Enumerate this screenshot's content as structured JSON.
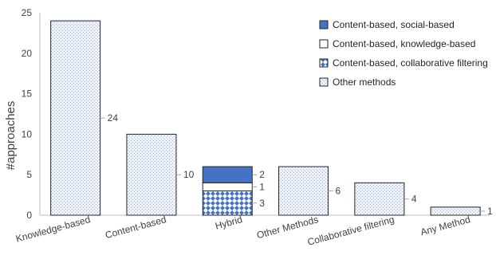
{
  "chart_data": {
    "type": "bar",
    "stacked": true,
    "xlabel": "",
    "ylabel": "#approaches",
    "ylim": [
      0,
      25
    ],
    "yticks": [
      0,
      5,
      10,
      15,
      20,
      25
    ],
    "grid": false,
    "legend_position": "top-right",
    "categories": [
      "Knowledge-based",
      "Content-based",
      "Hybrid",
      "Other Methods",
      "Collaborative filtering",
      "Any Method"
    ],
    "series": [
      {
        "name": "Content-based, collaborative filtering",
        "values": [
          0,
          0,
          3,
          0,
          0,
          0
        ],
        "color": "#4472c4",
        "pattern": "checker"
      },
      {
        "name": "Content-based, knowledge-based",
        "values": [
          0,
          0,
          1,
          0,
          0,
          0
        ],
        "color": "#ffffff",
        "pattern": "solid"
      },
      {
        "name": "Content-based, social-based",
        "values": [
          0,
          0,
          2,
          0,
          0,
          0
        ],
        "color": "#4472c4",
        "pattern": "solid"
      },
      {
        "name": "Other methods",
        "values": [
          24,
          10,
          0,
          6,
          4,
          1
        ],
        "color": "#dae3f3",
        "pattern": "dotted"
      }
    ],
    "legend_order": [
      "Content-based, social-based",
      "Content-based, knowledge-based",
      "Content-based, collaborative filtering",
      "Other methods"
    ],
    "data_labels": [
      {
        "category": "Knowledge-based",
        "series": "Other methods",
        "text": "24"
      },
      {
        "category": "Content-based",
        "series": "Other methods",
        "text": "10"
      },
      {
        "category": "Hybrid",
        "series": "Content-based, social-based",
        "text": "2"
      },
      {
        "category": "Hybrid",
        "series": "Content-based, knowledge-based",
        "text": "1"
      },
      {
        "category": "Hybrid",
        "series": "Content-based, collaborative filtering",
        "text": "3"
      },
      {
        "category": "Other Methods",
        "series": "Other methods",
        "text": "6"
      },
      {
        "category": "Collaborative filtering",
        "series": "Other methods",
        "text": "4"
      },
      {
        "category": "Any Method",
        "series": "Other methods",
        "text": "1"
      }
    ]
  }
}
